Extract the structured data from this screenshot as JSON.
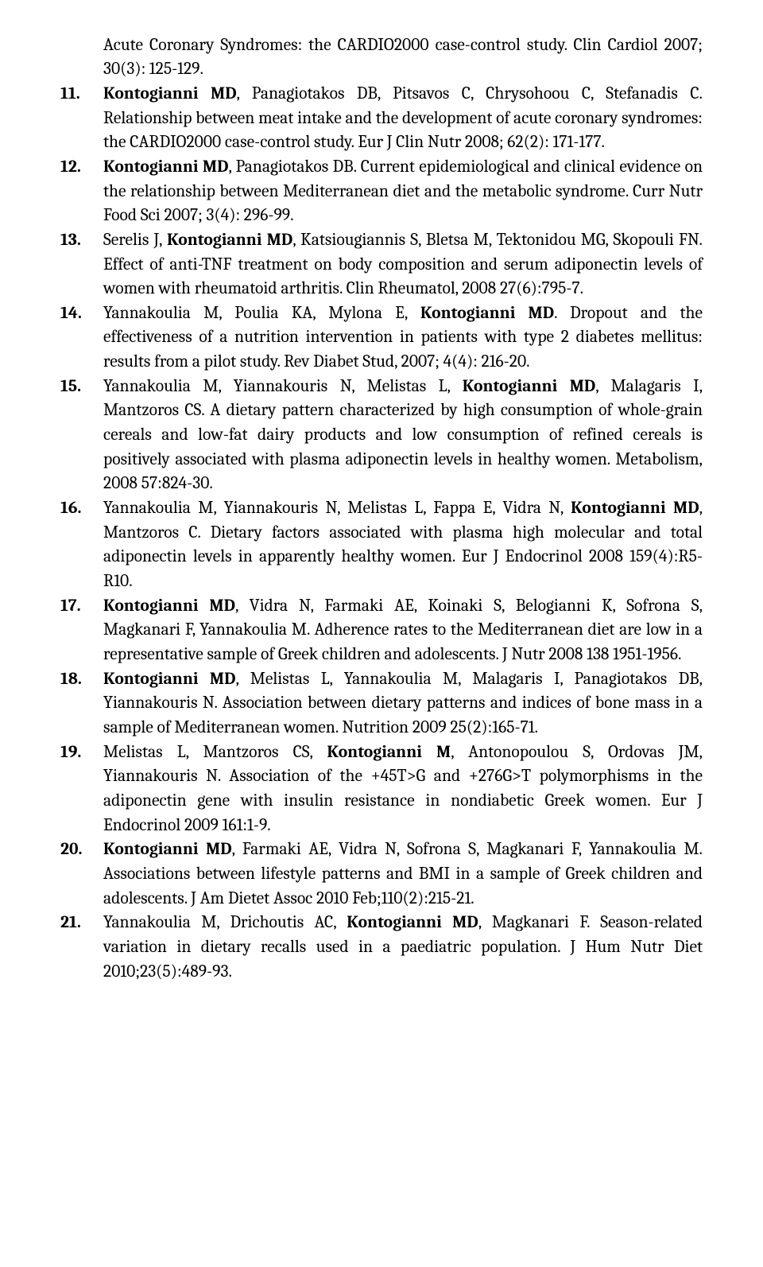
{
  "orphan": {
    "segments": [
      {
        "t": "Acute Coronary Syndromes: the CARDIO2000 case-control study. Clin Cardiol 2007; 30(3): 125-129.",
        "b": false
      }
    ]
  },
  "refs": [
    {
      "segments": [
        {
          "t": "Kontogianni MD",
          "b": true
        },
        {
          "t": ", Panagiotakos DB, Pitsavos C, Chrysohoou C, Stefanadis C. Relationship between meat intake and the development of acute coronary syndromes: the CARDIO2000 case-control study. Eur J Clin Nutr 2008; 62(2): 171-177.",
          "b": false
        }
      ]
    },
    {
      "segments": [
        {
          "t": "Kontogianni MD",
          "b": true
        },
        {
          "t": ", Panagiotakos DB. Current epidemiological and clinical evidence on the relationship between Mediterranean diet and the metabolic syndrome. Curr Nutr Food Sci 2007; 3(4): 296-99.",
          "b": false
        }
      ]
    },
    {
      "segments": [
        {
          "t": "Serelis J, ",
          "b": false
        },
        {
          "t": "Kontogianni MD",
          "b": true
        },
        {
          "t": ", Katsiougiannis S, Bletsa M, Tektonidou MG, Skopouli FN. Effect of anti-TNF treatment on body composition and serum adiponectin levels of women with rheumatoid arthritis. Clin Rheumatol, 2008 27(6):795-7.",
          "b": false
        }
      ]
    },
    {
      "segments": [
        {
          "t": "Yannakoulia M, Poulia KA, Mylona E, ",
          "b": false
        },
        {
          "t": "Kontogianni MD",
          "b": true
        },
        {
          "t": ". Dropout and the effectiveness of a nutrition intervention in patients with type 2 diabetes mellitus: results from a pilot study. Rev Diabet Stud, 2007; 4(4): 216-20.",
          "b": false
        }
      ]
    },
    {
      "segments": [
        {
          "t": "Yannakoulia M, Yiannakouris N, Melistas L, ",
          "b": false
        },
        {
          "t": "Kontogianni MD",
          "b": true
        },
        {
          "t": ", Malagaris I, Mantzoros CS. A dietary pattern characterized by high consumption of whole-grain cereals and low-fat dairy products and low consumption of refined cereals is positively associated with plasma adiponectin levels in healthy women. Metabolism, 2008 57:824-30.",
          "b": false
        }
      ]
    },
    {
      "segments": [
        {
          "t": "Yannakoulia M, Yiannakouris N, Melistas L, Fappa E, Vidra N, ",
          "b": false
        },
        {
          "t": "Kontogianni MD",
          "b": true
        },
        {
          "t": ", Mantzoros C. Dietary factors associated with plasma high molecular and total adiponectin levels in apparently healthy women. Eur J Endocrinol 2008 159(4):R5-R10.",
          "b": false
        }
      ]
    },
    {
      "segments": [
        {
          "t": "Kontogianni MD",
          "b": true
        },
        {
          "t": ", Vidra N, Farmaki AE, Koinaki S, Belogianni K, Sofrona S, Magkanari F, Yannakoulia M. Adherence rates to the Mediterranean diet are low in a representative sample of Greek children and adolescents. J Nutr 2008 138 1951-1956.",
          "b": false
        }
      ]
    },
    {
      "segments": [
        {
          "t": "Kontogianni MD",
          "b": true
        },
        {
          "t": ", Melistas L, Yannakoulia M, Malagaris I, Panagiotakos DB, Yiannakouris N. Association between dietary patterns and indices of bone mass in a sample of Mediterranean women.  Nutrition 2009 25(2):165-71.",
          "b": false
        }
      ]
    },
    {
      "segments": [
        {
          "t": "Melistas L, Mantzoros CS, ",
          "b": false
        },
        {
          "t": "Kontogianni M",
          "b": true
        },
        {
          "t": ", Antonopoulou S, Ordovas JM, Yiannakouris N. Association of the +45T>G and +276G>T polymorphisms in the adiponectin gene with insulin resistance in nondiabetic Greek women. Eur J Endocrinol 2009 161:1-9.",
          "b": false
        }
      ]
    },
    {
      "segments": [
        {
          "t": "Kontogianni MD",
          "b": true
        },
        {
          "t": ", Farmaki AE, Vidra N, Sofrona S, Magkanari F, Yannakoulia M. Associations between lifestyle patterns and BMI in a sample of Greek children and adolescents. J Am Dietet Assoc 2010 Feb;110(2):215-21.",
          "b": false
        }
      ]
    },
    {
      "segments": [
        {
          "t": "Yannakoulia M, Drichoutis AC, ",
          "b": false
        },
        {
          "t": "Kontogianni MD",
          "b": true
        },
        {
          "t": ", Magkanari F. Season-related variation in dietary recalls used in a paediatric population. J Hum Nutr Diet 2010;23(5):489-93.",
          "b": false
        }
      ]
    }
  ]
}
